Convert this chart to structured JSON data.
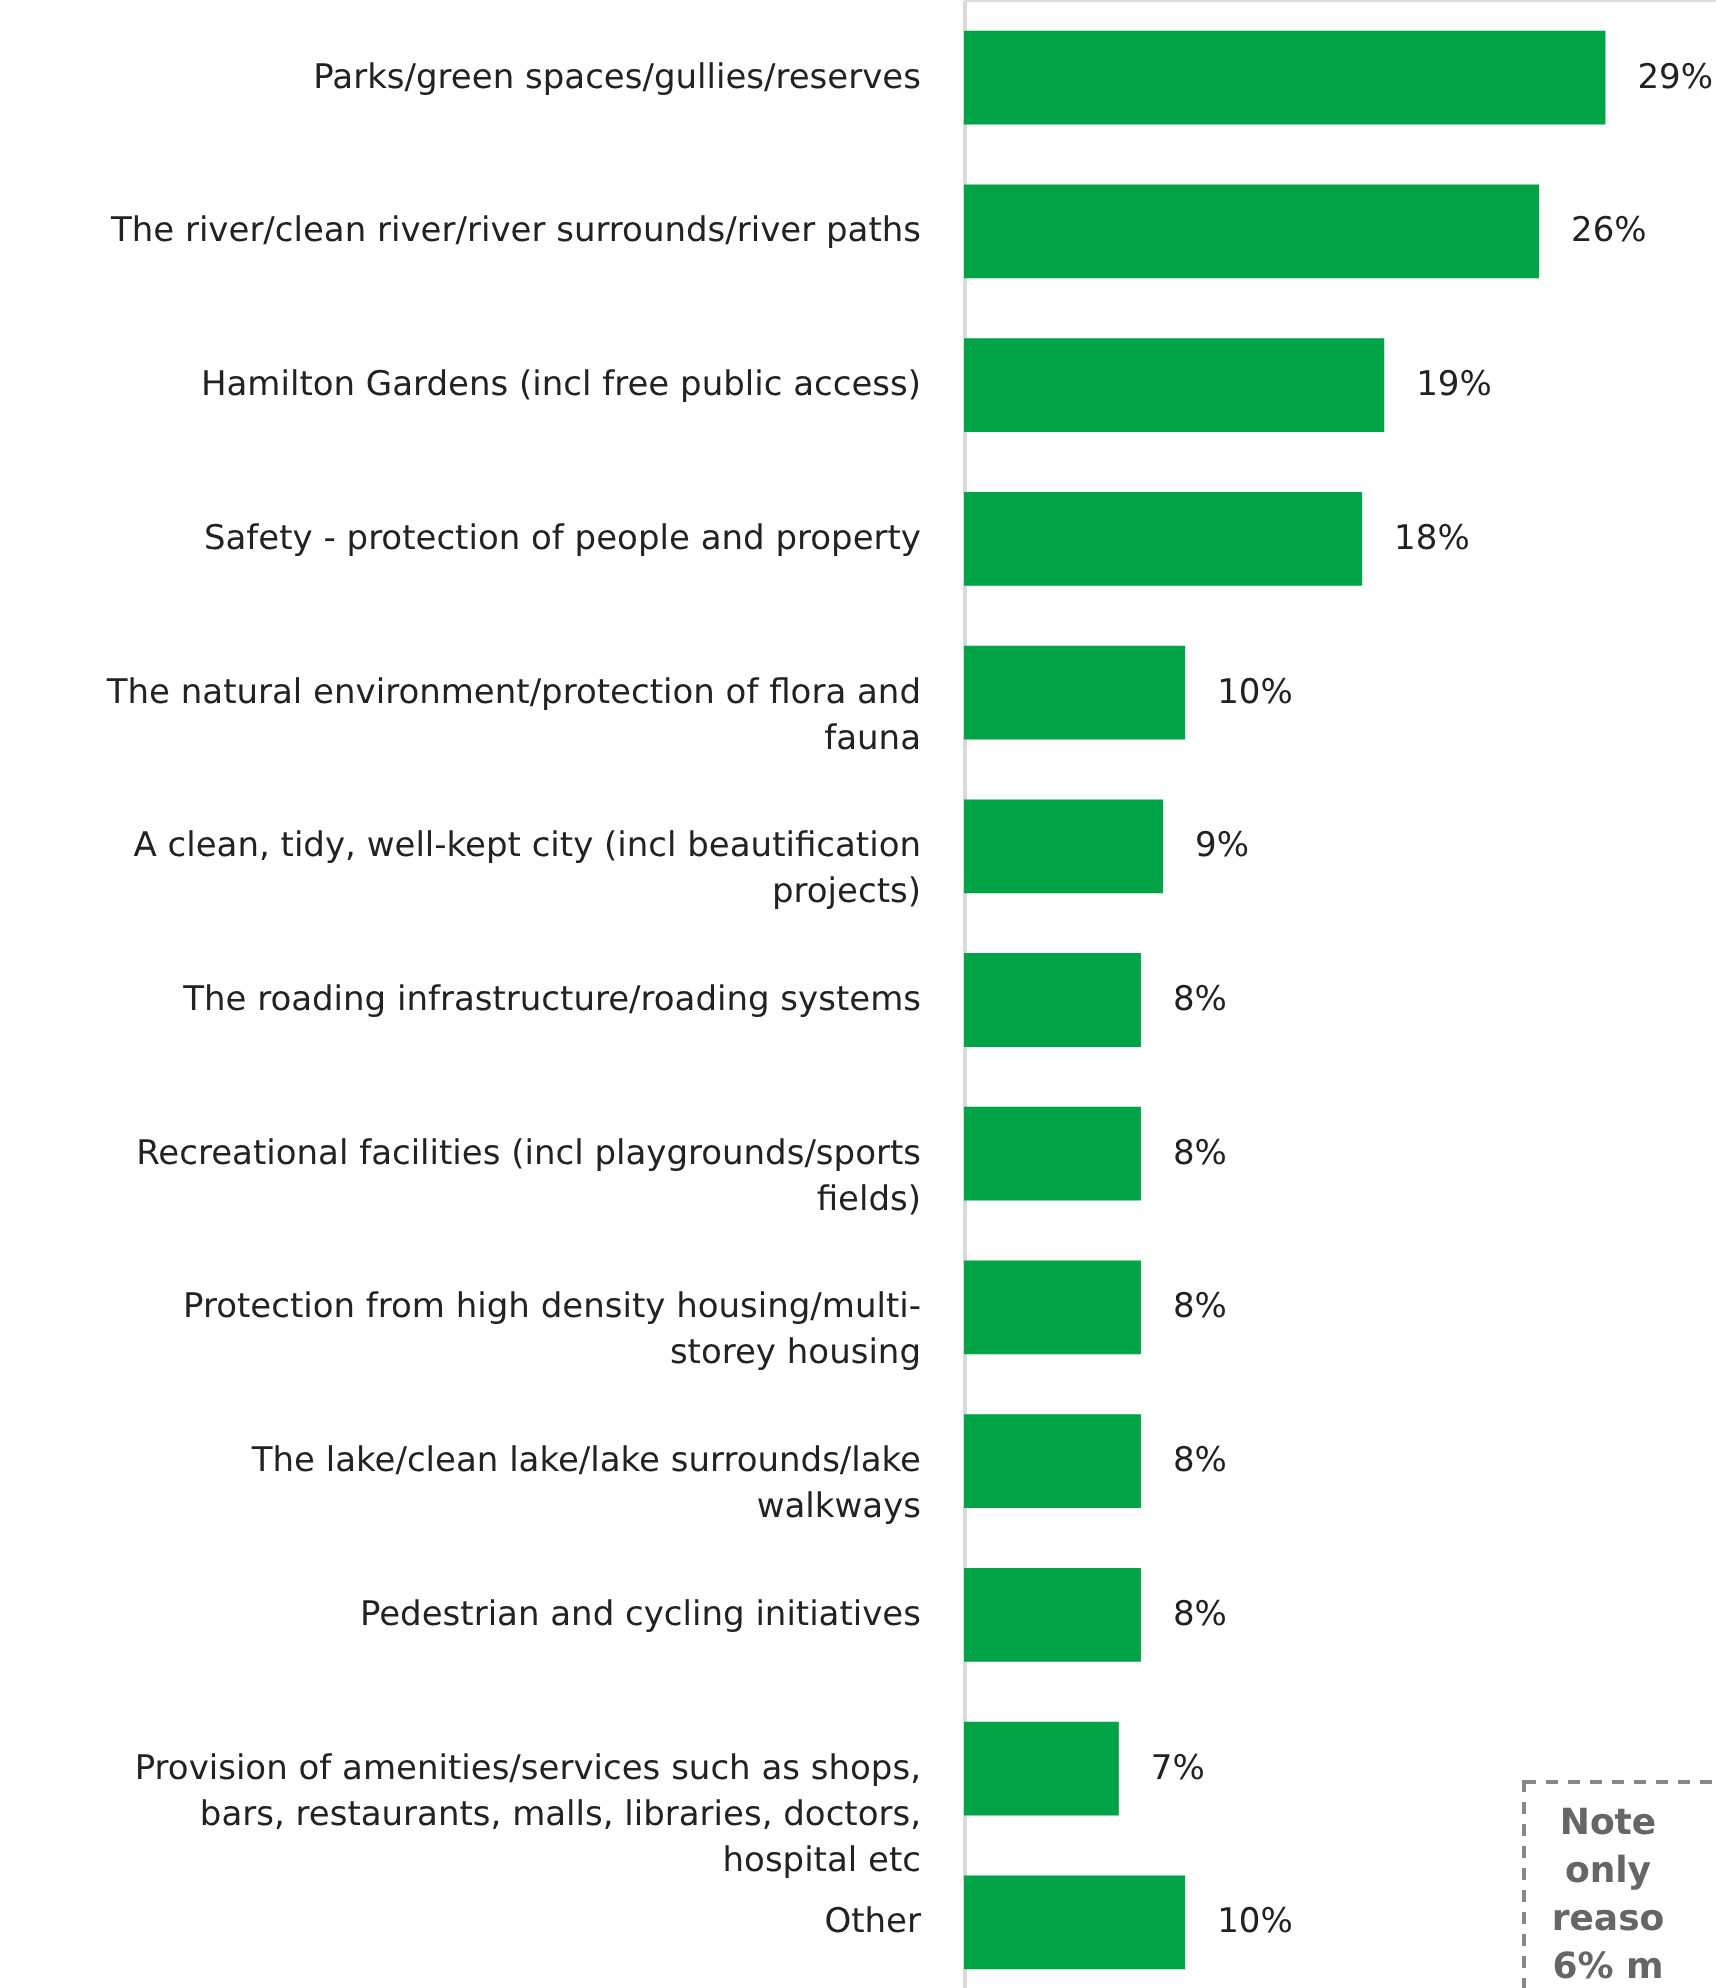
{
  "chart_data": {
    "type": "bar",
    "orientation": "horizontal",
    "categories": [
      "Parks/green spaces/gullies/reserves",
      "The river/clean river/river surrounds/river paths",
      "Hamilton Gardens (incl free public access)",
      "Safety - protection of people and property",
      "The natural environment/protection of flora and\nfauna",
      "A clean, tidy, well-kept city (incl beautification\nprojects)",
      "The roading infrastructure/roading systems",
      "Recreational facilities (incl playgrounds/sports\nfields)",
      "Protection from high density housing/multi-\nstorey housing",
      "The lake/clean lake/lake surrounds/lake\nwalkways",
      "Pedestrian and cycling initiatives",
      "Provision of amenities/services such as shops,\nbars, restaurants, malls, libraries, doctors,\nhospital etc",
      "Other"
    ],
    "values": [
      29,
      26,
      19,
      18,
      10,
      9,
      8,
      8,
      8,
      8,
      8,
      7,
      10
    ],
    "color": "#00a346",
    "xlim": [
      0,
      34
    ],
    "data_labels": true,
    "value_labels": [
      "29%",
      "26%",
      "19%",
      "18%",
      "10%",
      "9%",
      "8%",
      "8%",
      "8%",
      "8%",
      "8%",
      "7%",
      "10%"
    ],
    "grid": false,
    "annotations": [
      "Note\nonly\nreaso\n6% m"
    ]
  }
}
